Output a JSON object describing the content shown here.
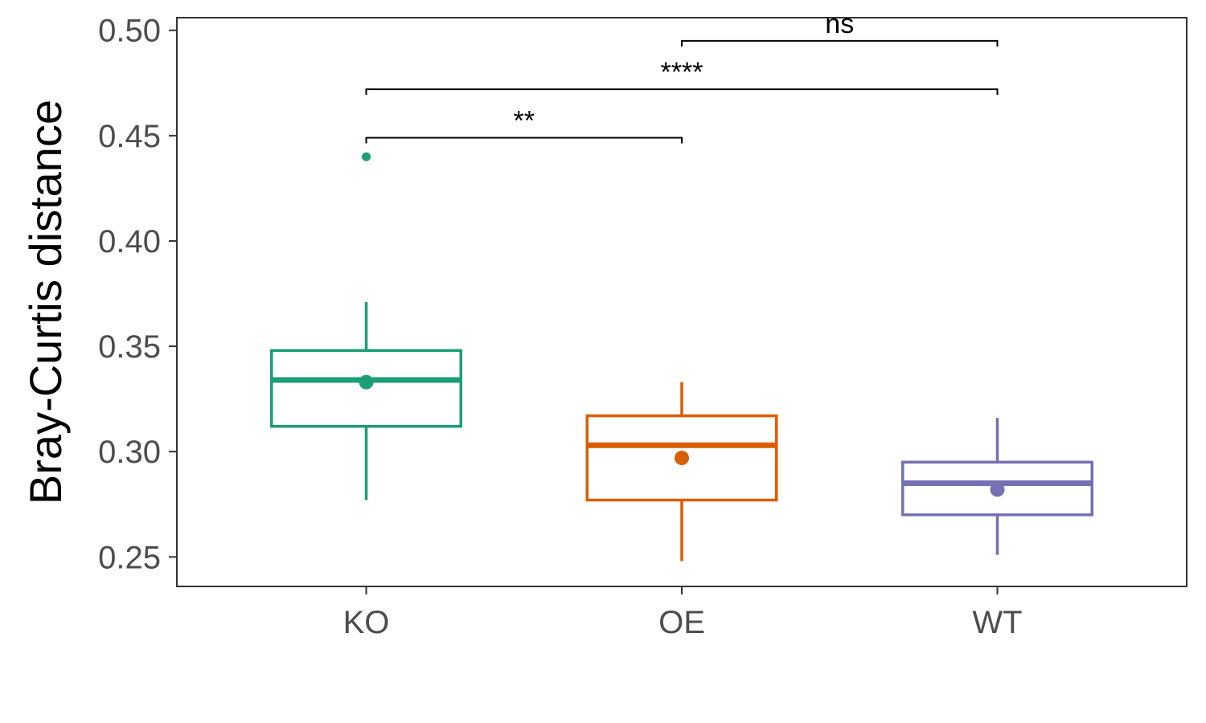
{
  "chart_data": {
    "type": "box",
    "title": "",
    "xlabel": "",
    "ylabel": "Bray-Curtis distance",
    "ylim": [
      0.236,
      0.506
    ],
    "yticks": [
      0.25,
      0.3,
      0.35,
      0.4,
      0.45,
      0.5
    ],
    "ytick_labels": [
      "0.25",
      "0.30",
      "0.35",
      "0.40",
      "0.45",
      "0.50"
    ],
    "categories": [
      "KO",
      "OE",
      "WT"
    ],
    "grid": false,
    "legend": "none",
    "boxes": [
      {
        "category": "KO",
        "color": "#1b9e77",
        "whisker_low": 0.277,
        "q1": 0.312,
        "median": 0.334,
        "q3": 0.348,
        "whisker_high": 0.371,
        "mean": 0.333,
        "outliers": [
          0.44
        ]
      },
      {
        "category": "OE",
        "color": "#d95f02",
        "whisker_low": 0.248,
        "q1": 0.277,
        "median": 0.303,
        "q3": 0.317,
        "whisker_high": 0.333,
        "mean": 0.297,
        "outliers": []
      },
      {
        "category": "WT",
        "color": "#7570b3",
        "whisker_low": 0.251,
        "q1": 0.27,
        "median": 0.285,
        "q3": 0.295,
        "whisker_high": 0.316,
        "mean": 0.282,
        "outliers": []
      }
    ],
    "comparisons": [
      {
        "from": "KO",
        "to": "OE",
        "y": 0.449,
        "label": "**"
      },
      {
        "from": "KO",
        "to": "WT",
        "y": 0.472,
        "label": "****"
      },
      {
        "from": "OE",
        "to": "WT",
        "y": 0.495,
        "label": "ns"
      }
    ]
  }
}
